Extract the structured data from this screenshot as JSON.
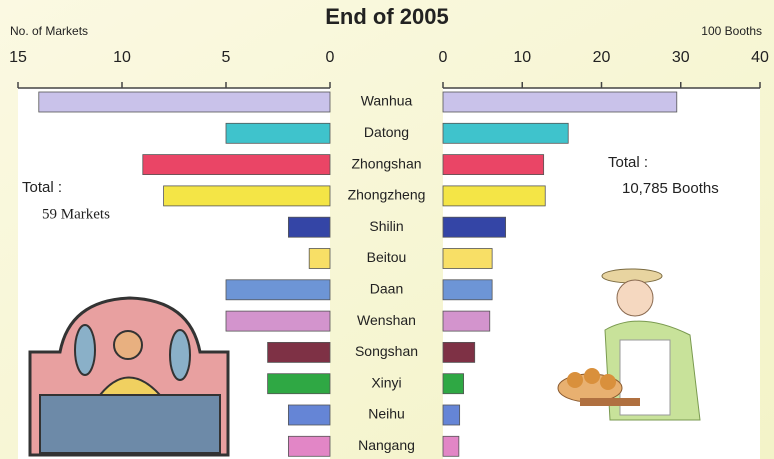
{
  "chart_data": {
    "type": "butterfly",
    "title": "End of 2005",
    "categories": [
      "Wanhua",
      "Datong",
      "Zhongshan",
      "Zhongzheng",
      "Shilin",
      "Beitou",
      "Daan",
      "Wenshan",
      "Songshan",
      "Xinyi",
      "Neihu",
      "Nangang"
    ],
    "colors": [
      "#c9c2ea",
      "#3fc3cc",
      "#ea4566",
      "#f4e546",
      "#3445a6",
      "#f8df66",
      "#6d95d6",
      "#d394cd",
      "#7e3145",
      "#2fa844",
      "#6585d6",
      "#e286c6"
    ],
    "left": {
      "axis_label": "No. of Markets",
      "values": [
        14,
        5,
        9,
        8,
        2,
        1,
        5,
        5,
        3,
        3,
        2,
        2
      ],
      "xlim": [
        15,
        0
      ],
      "xticks": [
        15,
        10,
        5,
        0
      ]
    },
    "right": {
      "axis_label": "100 Booths",
      "values": [
        29.5,
        15.8,
        12.7,
        12.9,
        7.9,
        6.2,
        6.2,
        5.9,
        4.0,
        2.6,
        2.1,
        2.0
      ],
      "xlim": [
        0,
        40
      ],
      "xticks": [
        0,
        10,
        20,
        30,
        40
      ]
    },
    "annotations": [
      [
        "Total :",
        "59 Markets"
      ],
      [
        "Total :",
        "10,785 Booths"
      ]
    ]
  }
}
